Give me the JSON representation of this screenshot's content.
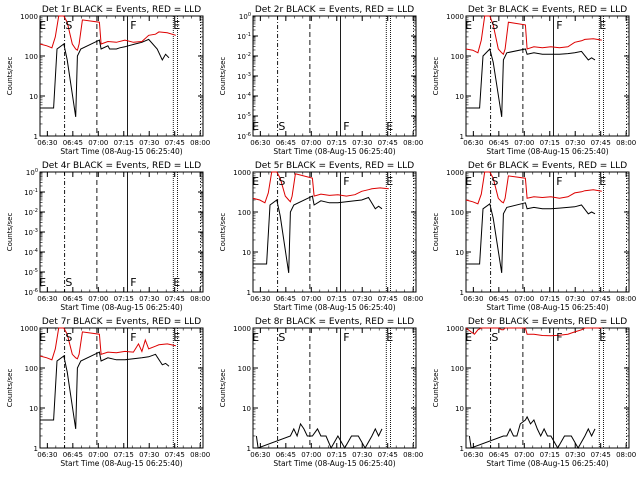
{
  "colors": {
    "events": "#000000",
    "lld": "#dd0000",
    "axis": "#000000"
  },
  "common": {
    "xlabel": "Start Time (08-Aug-15 06:25:40)",
    "ylabel": "Counts/sec",
    "x_ticks": [
      "06:30",
      "06:45",
      "07:00",
      "07:15",
      "07:30",
      "07:45",
      "08:00"
    ],
    "markers": [
      "E",
      "S",
      "F",
      "E"
    ]
  },
  "chart_data": [
    {
      "type": "line",
      "title": "Det 1r BLACK = Events, RED = LLD",
      "xlabel": "Start Time (08-Aug-15 06:25:40)",
      "ylabel": "Counts/sec",
      "y_ticks": [
        "1",
        "10",
        "100",
        "1000"
      ],
      "markers": [
        "E",
        "S",
        "F",
        "E"
      ],
      "xlim": [
        "06:25:40",
        "08:05"
      ],
      "ylim": [
        1,
        1000
      ],
      "yscale": "log",
      "series": [
        {
          "name": "Events",
          "x": [
            0,
            8,
            10,
            14,
            16,
            21,
            22,
            24,
            35,
            36,
            40,
            41,
            45,
            47,
            50,
            52,
            56,
            60,
            64,
            69,
            72,
            74,
            76
          ],
          "y": [
            5,
            5,
            150,
            200,
            80,
            3,
            100,
            150,
            250,
            150,
            180,
            150,
            150,
            160,
            170,
            180,
            200,
            220,
            260,
            150,
            80,
            110,
            90
          ]
        },
        {
          "name": "LLD",
          "x": [
            0,
            4,
            7,
            9,
            11,
            14,
            16,
            19,
            21,
            22,
            23,
            25,
            35,
            36,
            40,
            45,
            50,
            55,
            60,
            64,
            68,
            70,
            75,
            80
          ],
          "y": [
            200,
            180,
            160,
            300,
            1000,
            1000,
            700,
            200,
            150,
            140,
            200,
            800,
            700,
            200,
            230,
            220,
            250,
            220,
            230,
            330,
            350,
            400,
            380,
            330
          ]
        }
      ]
    },
    {
      "type": "line",
      "title": "Det 2r BLACK = Events, RED = LLD",
      "xlabel": "Start Time (08-Aug-15 06:25:40)",
      "ylabel": "Counts/sec",
      "y_ticks": [
        "10^-6",
        "10^-5",
        "10^-4",
        "10^-3",
        "10^-2",
        "10^-1",
        "10^0"
      ],
      "markers": [
        "E",
        "S",
        "F",
        "E"
      ],
      "xlim": [
        "06:25:40",
        "08:05"
      ],
      "ylim": [
        1e-06,
        1
      ],
      "yscale": "log",
      "series": []
    },
    {
      "type": "line",
      "title": "Det 3r BLACK = Events, RED = LLD",
      "xlabel": "Start Time (08-Aug-15 06:25:40)",
      "ylabel": "Counts/sec",
      "y_ticks": [
        "1",
        "10",
        "100",
        "1000"
      ],
      "markers": [
        "E",
        "S",
        "F",
        "E"
      ],
      "xlim": [
        "06:25:40",
        "08:05"
      ],
      "ylim": [
        1,
        1000
      ],
      "yscale": "log",
      "series": [
        {
          "name": "Events",
          "x": [
            0,
            8,
            10,
            14,
            16,
            21,
            22,
            24,
            35,
            36,
            40,
            45,
            50,
            55,
            60,
            64,
            68,
            72,
            74,
            76
          ],
          "y": [
            5,
            5,
            100,
            150,
            70,
            3,
            80,
            120,
            150,
            110,
            120,
            110,
            110,
            110,
            115,
            120,
            130,
            80,
            90,
            80
          ]
        },
        {
          "name": "LLD",
          "x": [
            0,
            4,
            7,
            9,
            11,
            14,
            16,
            19,
            21,
            22,
            23,
            25,
            35,
            36,
            40,
            45,
            50,
            55,
            60,
            64,
            68,
            70,
            75,
            80
          ],
          "y": [
            150,
            140,
            120,
            250,
            1000,
            1000,
            600,
            150,
            120,
            110,
            150,
            700,
            600,
            150,
            170,
            160,
            170,
            160,
            170,
            220,
            240,
            260,
            270,
            250
          ]
        }
      ]
    },
    {
      "type": "line",
      "title": "Det 4r BLACK = Events, RED = LLD",
      "xlabel": "Start Time (08-Aug-15 06:25:40)",
      "ylabel": "Counts/sec",
      "y_ticks": [
        "10^-6",
        "10^-5",
        "10^-4",
        "10^-3",
        "10^-2",
        "10^-1",
        "10^0"
      ],
      "markers": [
        "E",
        "S",
        "F",
        "E"
      ],
      "xlim": [
        "06:25:40",
        "08:05"
      ],
      "ylim": [
        1e-06,
        1
      ],
      "yscale": "log",
      "series": []
    },
    {
      "type": "line",
      "title": "Det 5r BLACK = Events, RED = LLD",
      "xlabel": "Start Time (08-Aug-15 06:25:40)",
      "ylabel": "Counts/sec",
      "y_ticks": [
        "1",
        "10",
        "100",
        "1000"
      ],
      "markers": [
        "E",
        "S",
        "F",
        "E"
      ],
      "xlim": [
        "06:25:40",
        "08:05"
      ],
      "ylim": [
        1,
        1000
      ],
      "yscale": "log",
      "series": [
        {
          "name": "Events",
          "x": [
            0,
            8,
            10,
            14,
            16,
            21,
            22,
            24,
            35,
            36,
            40,
            45,
            50,
            55,
            60,
            64,
            68,
            72,
            74,
            76
          ],
          "y": [
            5,
            5,
            150,
            200,
            80,
            3,
            100,
            150,
            250,
            150,
            190,
            170,
            170,
            180,
            190,
            200,
            230,
            120,
            140,
            120
          ]
        },
        {
          "name": "LLD",
          "x": [
            0,
            4,
            7,
            9,
            11,
            14,
            16,
            19,
            21,
            22,
            23,
            25,
            35,
            36,
            40,
            45,
            50,
            55,
            60,
            64,
            68,
            70,
            75,
            80
          ],
          "y": [
            220,
            200,
            170,
            300,
            1000,
            1000,
            700,
            250,
            200,
            180,
            250,
            900,
            700,
            250,
            280,
            260,
            270,
            250,
            270,
            330,
            360,
            380,
            400,
            380
          ]
        }
      ]
    },
    {
      "type": "line",
      "title": "Det 6r BLACK = Events, RED = LLD",
      "xlabel": "Start Time (08-Aug-15 06:25:40)",
      "ylabel": "Counts/sec",
      "y_ticks": [
        "1",
        "10",
        "100",
        "1000"
      ],
      "markers": [
        "E",
        "S",
        "F",
        "E"
      ],
      "xlim": [
        "06:25:40",
        "08:05"
      ],
      "ylim": [
        1,
        1000
      ],
      "yscale": "log",
      "series": [
        {
          "name": "Events",
          "x": [
            0,
            8,
            10,
            14,
            16,
            21,
            22,
            24,
            35,
            36,
            40,
            45,
            50,
            55,
            60,
            64,
            68,
            72,
            74,
            76
          ],
          "y": [
            5,
            5,
            120,
            160,
            70,
            3,
            90,
            130,
            170,
            120,
            130,
            120,
            120,
            125,
            130,
            135,
            150,
            90,
            100,
            90
          ]
        },
        {
          "name": "LLD",
          "x": [
            0,
            4,
            7,
            9,
            11,
            14,
            16,
            19,
            21,
            22,
            23,
            25,
            35,
            36,
            40,
            45,
            50,
            55,
            60,
            64,
            68,
            70,
            75,
            80
          ],
          "y": [
            200,
            180,
            160,
            280,
            1000,
            1000,
            700,
            220,
            180,
            170,
            220,
            800,
            700,
            220,
            240,
            230,
            240,
            220,
            240,
            300,
            320,
            340,
            360,
            330
          ]
        }
      ]
    },
    {
      "type": "line",
      "title": "Det 7r BLACK = Events, RED = LLD",
      "xlabel": "Start Time (08-Aug-15 06:25:40)",
      "ylabel": "Counts/sec",
      "y_ticks": [
        "1",
        "10",
        "100",
        "1000"
      ],
      "markers": [
        "E",
        "S",
        "F",
        "E"
      ],
      "xlim": [
        "06:25:40",
        "08:05"
      ],
      "ylim": [
        1,
        1000
      ],
      "yscale": "log",
      "series": [
        {
          "name": "Events",
          "x": [
            0,
            8,
            10,
            14,
            16,
            21,
            22,
            24,
            35,
            36,
            40,
            45,
            50,
            55,
            60,
            64,
            68,
            72,
            74,
            76
          ],
          "y": [
            5,
            5,
            150,
            200,
            80,
            3,
            100,
            150,
            250,
            150,
            180,
            160,
            160,
            170,
            180,
            190,
            220,
            120,
            130,
            110
          ]
        },
        {
          "name": "LLD",
          "x": [
            0,
            4,
            7,
            9,
            11,
            14,
            16,
            19,
            21,
            22,
            23,
            25,
            35,
            36,
            40,
            45,
            50,
            55,
            58,
            60,
            62,
            64,
            68,
            70,
            75,
            80
          ],
          "y": [
            200,
            180,
            160,
            300,
            1000,
            1000,
            700,
            220,
            180,
            170,
            220,
            800,
            700,
            220,
            250,
            240,
            260,
            250,
            400,
            260,
            500,
            300,
            350,
            380,
            400,
            360
          ]
        }
      ]
    },
    {
      "type": "line",
      "title": "Det 8r BLACK = Events, RED = LLD",
      "xlabel": "Start Time (08-Aug-15 06:25:40)",
      "ylabel": "Counts/sec",
      "y_ticks": [
        "1",
        "10",
        "100",
        "1000"
      ],
      "markers": [
        "E",
        "S",
        "F",
        "E"
      ],
      "xlim": [
        "06:25:40",
        "08:05"
      ],
      "ylim": [
        1,
        1000
      ],
      "yscale": "log",
      "series": [
        {
          "name": "Events",
          "x": [
            2,
            3,
            22,
            24,
            26,
            28,
            30,
            32,
            35,
            38,
            40,
            43,
            46,
            50,
            54,
            58,
            62,
            66,
            70,
            72,
            74,
            76
          ],
          "y": [
            2,
            1,
            2,
            3,
            2,
            4,
            3,
            2,
            2,
            3,
            2,
            2,
            1,
            2,
            1,
            2,
            2,
            1,
            2,
            3,
            2,
            3
          ]
        }
      ]
    },
    {
      "type": "line",
      "title": "Det 9r BLACK = Events, RED = LLD",
      "xlabel": "Start Time (08-Aug-15 06:25:40)",
      "ylabel": "Counts/sec",
      "y_ticks": [
        "1",
        "10",
        "100",
        "1000"
      ],
      "markers": [
        "E",
        "S",
        "F",
        "E"
      ],
      "xlim": [
        "06:25:40",
        "08:05"
      ],
      "ylim": [
        1,
        1000
      ],
      "yscale": "log",
      "series": [
        {
          "name": "Events",
          "x": [
            2,
            3,
            22,
            24,
            26,
            28,
            30,
            32,
            35,
            36,
            38,
            40,
            42,
            44,
            46,
            48,
            50,
            54,
            58,
            62,
            66,
            70,
            72,
            74,
            76
          ],
          "y": [
            2,
            1,
            2,
            2,
            3,
            2,
            2,
            4,
            5,
            6,
            4,
            5,
            3,
            2,
            3,
            2,
            2,
            1,
            2,
            2,
            1,
            2,
            3,
            2,
            3
          ]
        },
        {
          "name": "LLD",
          "x": [
            0,
            3,
            5,
            7,
            9,
            11,
            14,
            16,
            19,
            21,
            22,
            23,
            25,
            35,
            36,
            40,
            45,
            50,
            55,
            60,
            64,
            68,
            70,
            75,
            80
          ],
          "y": [
            1000,
            800,
            700,
            900,
            1000,
            1000,
            1000,
            1000,
            1000,
            900,
            900,
            1000,
            1000,
            1000,
            700,
            700,
            650,
            640,
            660,
            700,
            800,
            900,
            1000,
            1000,
            1000
          ]
        }
      ]
    }
  ]
}
